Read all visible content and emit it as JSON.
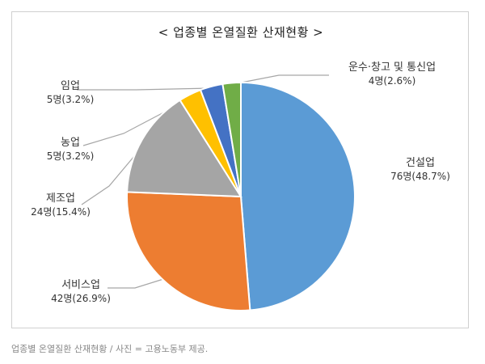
{
  "caption": "업종별 온열질환 산재현황 / 사진 = 고용노동부 제공.",
  "chart_data": {
    "type": "pie",
    "title": "< 업종별 온열질환 산재현황 >",
    "start": "top",
    "direction": "clockwise",
    "slices": [
      {
        "label": "건설업",
        "value": 76,
        "value_label": "76명(48.7%)",
        "color": "#5b9bd5"
      },
      {
        "label": "서비스업",
        "value": 42,
        "value_label": "42명(26.9%)",
        "color": "#ed7d31"
      },
      {
        "label": "제조업",
        "value": 24,
        "value_label": "24명(15.4%)",
        "color": "#a5a5a5"
      },
      {
        "label": "농업",
        "value": 5,
        "value_label": "5명(3.2%)",
        "color": "#ffc000"
      },
      {
        "label": "임업",
        "value": 5,
        "value_label": "5명(3.2%)",
        "color": "#4472c4"
      },
      {
        "label": "운수·창고 및 통신업",
        "value": 4,
        "value_label": "4명(2.6%)",
        "color": "#70ad47"
      }
    ]
  }
}
